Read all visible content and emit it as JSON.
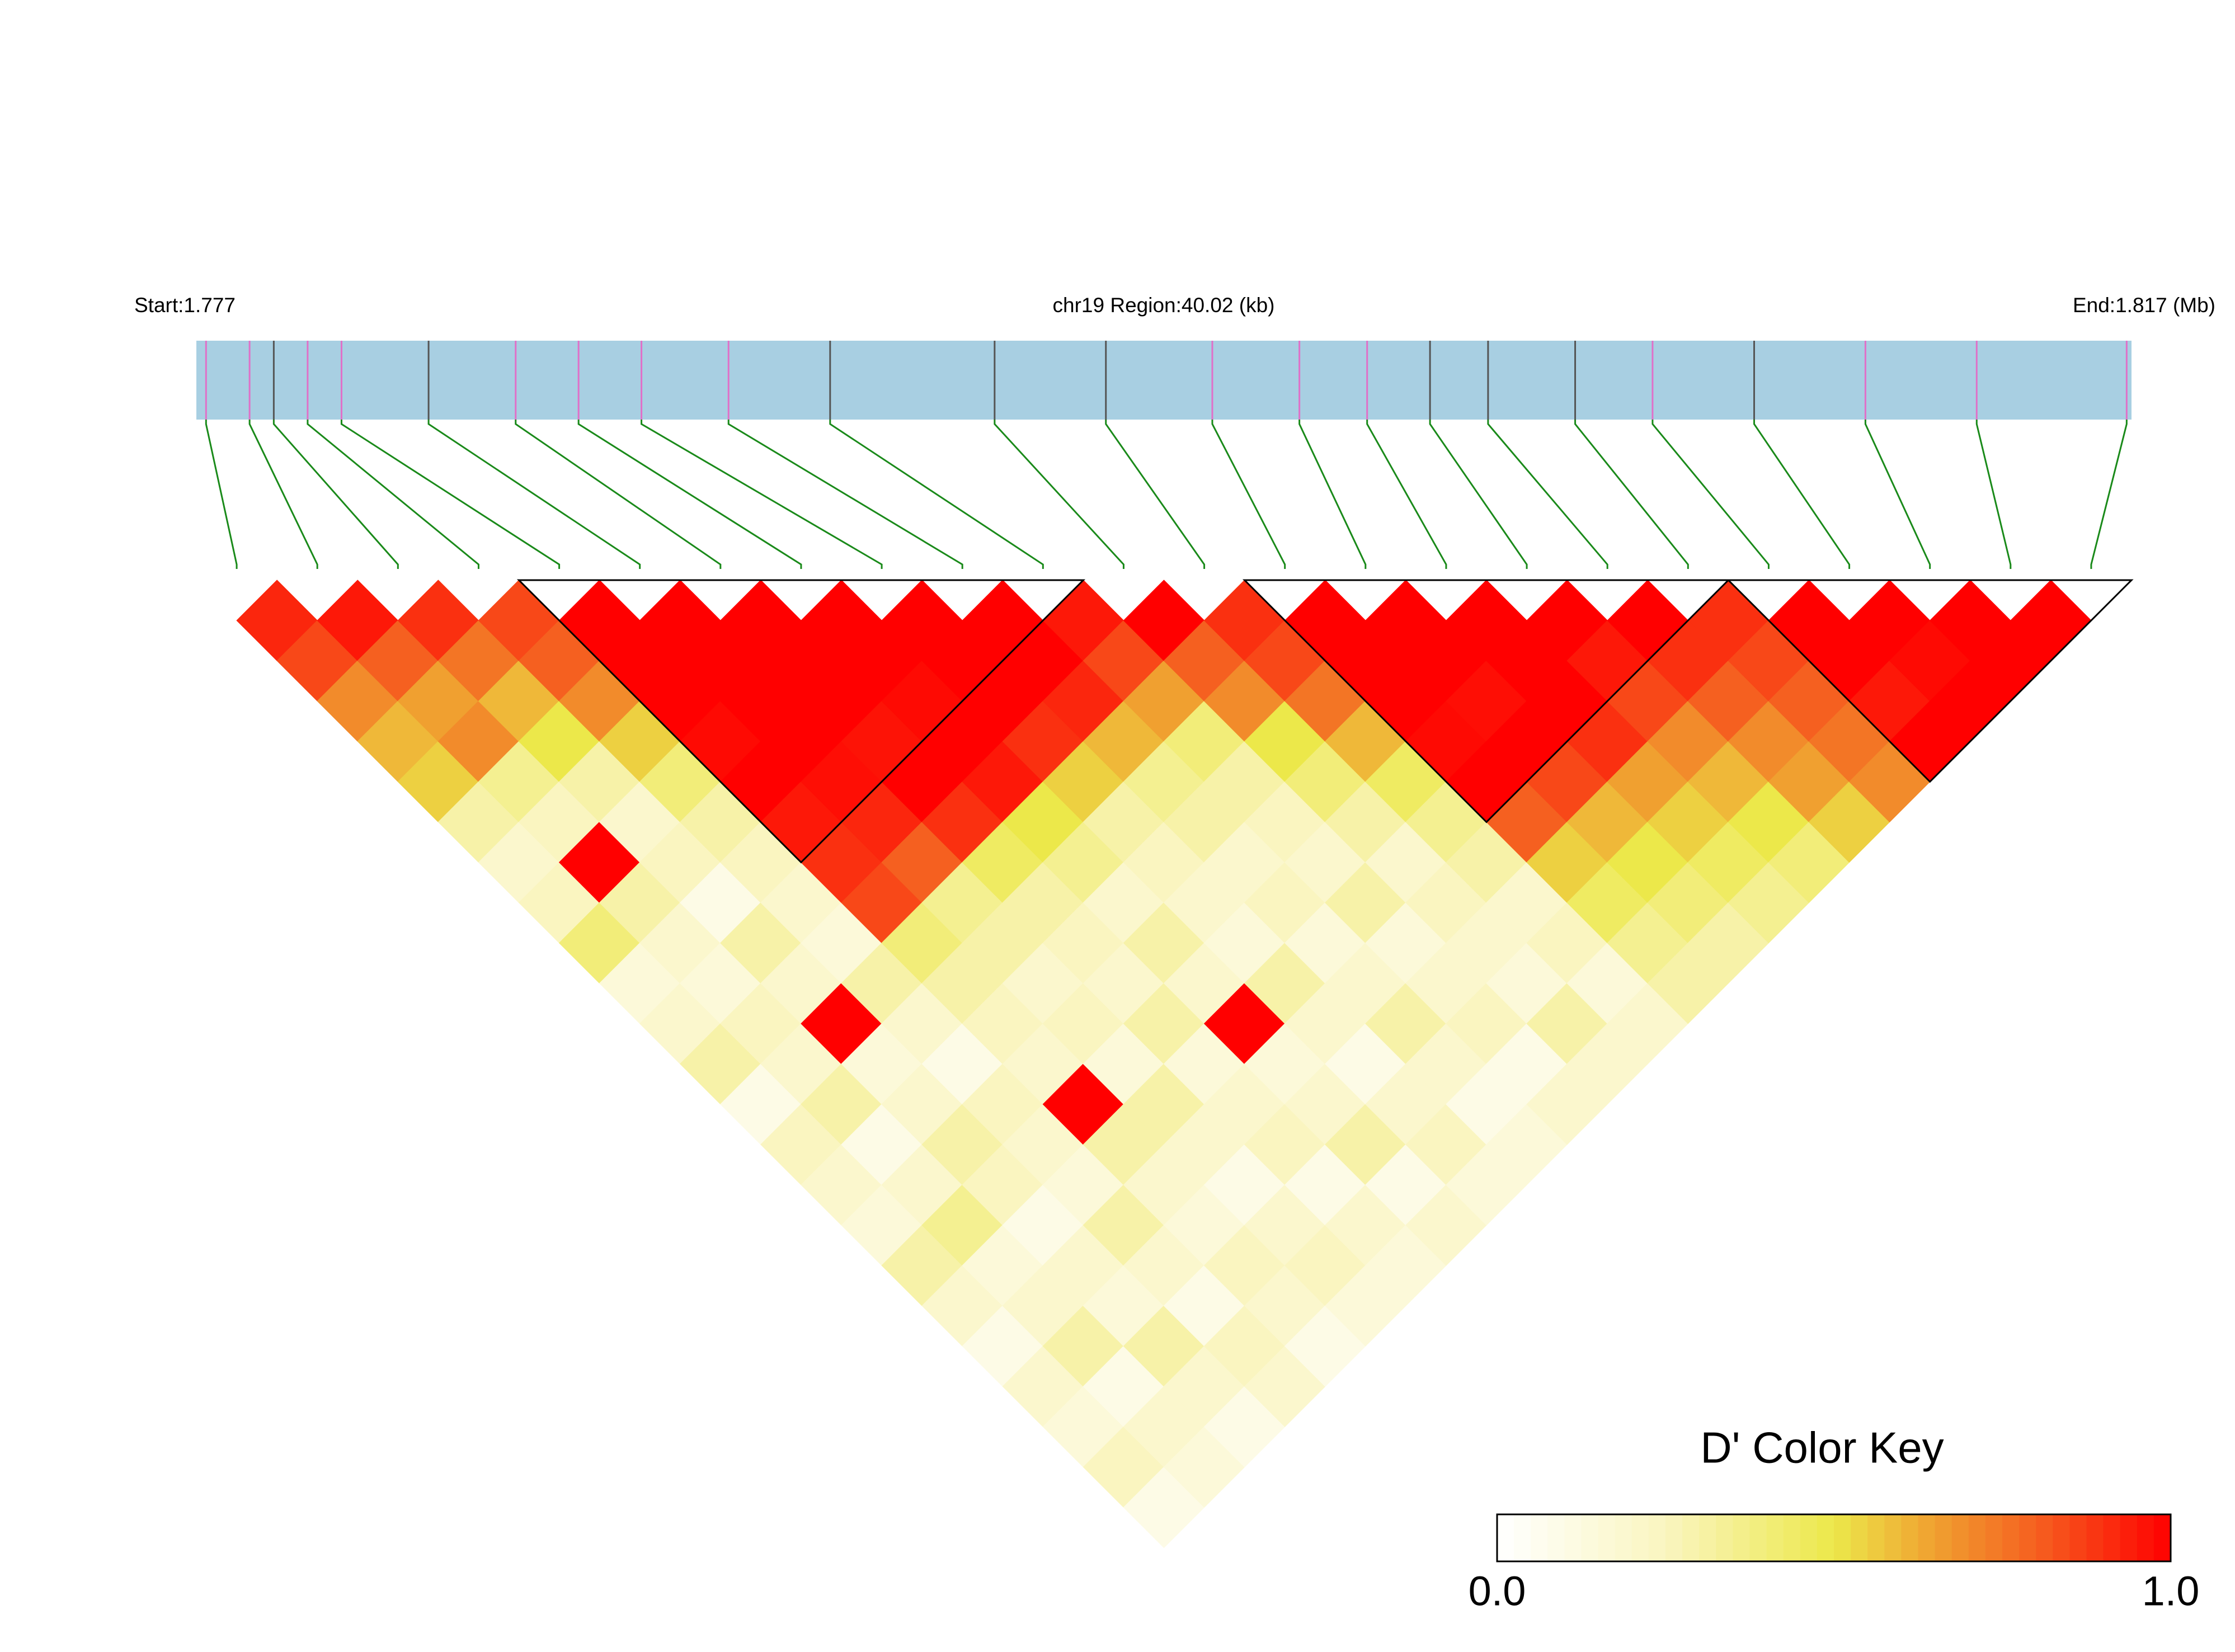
{
  "chart_data": {
    "type": "ld-heatmap",
    "start_label": "Start:1.777",
    "region_label": "chr19 Region:40.02 (kb)",
    "end_label": "End:1.817 (Mb)",
    "xlim": [
      1.777,
      1.817
    ],
    "positions": [
      1.7772,
      1.7781,
      1.7786,
      1.7793,
      1.78,
      1.7818,
      1.7836,
      1.7849,
      1.7862,
      1.788,
      1.7901,
      1.7935,
      1.7958,
      1.798,
      1.7998,
      1.8012,
      1.8025,
      1.8037,
      1.8055,
      1.8071,
      1.8092,
      1.8115,
      1.8138,
      1.8169
    ],
    "snp_colors": [
      "#e070c8",
      "#e070c8",
      "#555555",
      "#e070c8",
      "#e070c8",
      "#555555",
      "#e070c8",
      "#e070c8",
      "#e070c8",
      "#e070c8",
      "#555555",
      "#555555",
      "#555555",
      "#e070c8",
      "#e070c8",
      "#e070c8",
      "#555555",
      "#555555",
      "#555555",
      "#e070c8",
      "#555555",
      "#e070c8",
      "#e070c8",
      "#e070c8"
    ],
    "track_color": "#a8cfe2",
    "link_color": "#1a8a1a",
    "dprime": [
      [
        0.92,
        0.85,
        0.7,
        0.6,
        0.55,
        0.3,
        0.2,
        0.25,
        0.4,
        0.15,
        0.2,
        0.3,
        0.1,
        0.25,
        0.2,
        0.15,
        0.3,
        0.2,
        0.1,
        0.2,
        0.15,
        0.25,
        0.1
      ],
      [
        0.95,
        0.8,
        0.65,
        0.7,
        0.35,
        0.25,
        1,
        0.3,
        0.2,
        0.15,
        0.25,
        0.2,
        0.3,
        0.1,
        0.2,
        0.35,
        0.15,
        0.2,
        0.3,
        0.1,
        0.2,
        0.15
      ],
      [
        0.9,
        0.75,
        0.6,
        0.5,
        0.3,
        0.2,
        0.25,
        0.1,
        0.3,
        0.2,
        1,
        0.15,
        0.2,
        0.3,
        0.25,
        0.1,
        0.2,
        0.15,
        0.3,
        0.2,
        0.1
      ],
      [
        0.85,
        0.8,
        0.7,
        0.55,
        0.4,
        0.3,
        0.25,
        0.2,
        0.15,
        0.3,
        0.2,
        0.1,
        0.25,
        0.2,
        0.15,
        0.3,
        0.2,
        0.1,
        0.25,
        0.2
      ],
      [
        1,
        1,
        1,
        0.98,
        1,
        0.95,
        0.9,
        0.85,
        0.4,
        0.3,
        0.25,
        0.2,
        1,
        0.3,
        0.2,
        0.15,
        0.25,
        0.2,
        0.1
      ],
      [
        1,
        1,
        1,
        1,
        0.97,
        0.92,
        0.8,
        0.35,
        0.3,
        0.2,
        0.25,
        0.15,
        0.3,
        0.2,
        0.1,
        0.2,
        0.25,
        0.15
      ],
      [
        1,
        1,
        1,
        0.96,
        1,
        0.9,
        0.45,
        0.3,
        0.25,
        0.2,
        0.3,
        0.15,
        0.2,
        0.25,
        0.1,
        0.2,
        0.15
      ],
      [
        1,
        1,
        0.98,
        1,
        0.95,
        0.5,
        0.35,
        0.2,
        0.3,
        0.2,
        1,
        0.15,
        0.2,
        0.3,
        0.1,
        0.2
      ],
      [
        1,
        1,
        1,
        0.9,
        0.55,
        0.3,
        0.25,
        0.2,
        0.15,
        0.3,
        0.2,
        0.1,
        0.2,
        0.25,
        0.15
      ],
      [
        1,
        1,
        0.92,
        0.6,
        0.35,
        0.3,
        0.2,
        0.25,
        0.15,
        0.2,
        0.3,
        0.2,
        0.1,
        0.15
      ],
      [
        0.95,
        0.85,
        0.65,
        0.4,
        0.3,
        0.25,
        0.2,
        0.3,
        0.15,
        0.2,
        0.25,
        0.1,
        0.2
      ],
      [
        1,
        0.8,
        0.7,
        0.5,
        0.4,
        0.3,
        0.2,
        0.25,
        0.2,
        0.15,
        0.3,
        0.2
      ],
      [
        0.9,
        0.85,
        0.75,
        0.6,
        0.45,
        0.35,
        0.3,
        0.2,
        0.25,
        0.15,
        0.2
      ],
      [
        1,
        1,
        1,
        0.98,
        1,
        0.8,
        0.55,
        0.45,
        0.35,
        0.3
      ],
      [
        1,
        1,
        0.97,
        1,
        0.85,
        0.6,
        0.5,
        0.4,
        0.3
      ],
      [
        1,
        1,
        1,
        0.9,
        0.65,
        0.55,
        0.45,
        0.35
      ],
      [
        1,
        0.95,
        0.85,
        0.7,
        0.6,
        0.5,
        0.4
      ],
      [
        1,
        0.9,
        0.8,
        0.7,
        0.65,
        0.55
      ],
      [
        0.9,
        0.85,
        0.8,
        0.75,
        0.7
      ],
      [
        1,
        1,
        0.95,
        1
      ],
      [
        1,
        0.98,
        1
      ],
      [
        1,
        1
      ],
      [
        1
      ]
    ],
    "blocks": [
      [
        4,
        10
      ],
      [
        13,
        18
      ],
      [
        19,
        23
      ]
    ],
    "colorscale": [
      [
        0,
        "#ffffff"
      ],
      [
        0.25,
        "#faf5c0"
      ],
      [
        0.5,
        "#ece84a"
      ],
      [
        0.65,
        "#f0a030"
      ],
      [
        0.8,
        "#f56020"
      ],
      [
        1,
        "#ff0000"
      ]
    ],
    "legend_title": "D' Color Key",
    "legend_ticks": [
      {
        "value": 0,
        "label": "0.0"
      },
      {
        "value": 1,
        "label": "1.0"
      }
    ]
  }
}
